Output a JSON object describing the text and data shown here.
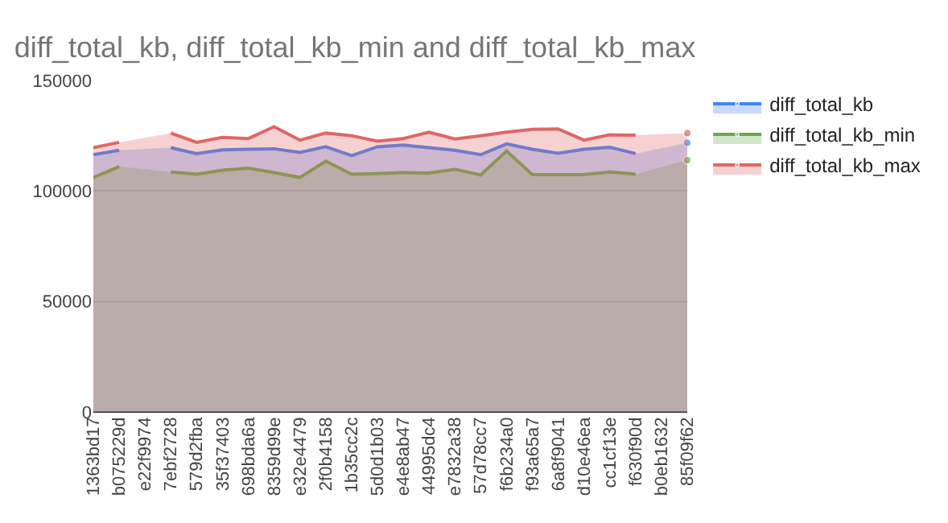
{
  "chart_data": {
    "type": "area",
    "title": "diff_total_kb, diff_total_kb_min and diff_total_kb_max",
    "categories": [
      "1363bd17",
      "b075229d",
      "e22f9974",
      "7ebf2728",
      "579d2fba",
      "35f37403",
      "698bda6a",
      "8359d99e",
      "e32e4479",
      "2f0b4158",
      "1b35cc2c",
      "5d0d1b03",
      "e4e8ab47",
      "44995dc4",
      "e7832a38",
      "57d78cc7",
      "f6b234a0",
      "f93a65a7",
      "6a8f9041",
      "d10e46ea",
      "cc1cf13e",
      "f630f90d",
      "b0eb1632",
      "85f09f62"
    ],
    "series": [
      {
        "name": "diff_total_kb",
        "color": "#4285f4",
        "values": [
          116400,
          118400,
          null,
          119600,
          116900,
          118600,
          118900,
          119100,
          117400,
          120000,
          116000,
          120000,
          120800,
          119600,
          118400,
          116400,
          121300,
          118900,
          117100,
          118900,
          119800,
          116900,
          null,
          121800
        ]
      },
      {
        "name": "diff_total_kb_min",
        "color": "#6aa84f",
        "values": [
          106100,
          111000,
          null,
          108600,
          107600,
          109400,
          110300,
          108300,
          106100,
          113500,
          107600,
          107900,
          108300,
          108100,
          109800,
          107200,
          118100,
          107400,
          107400,
          107400,
          108600,
          107600,
          null,
          114000
        ]
      },
      {
        "name": "diff_total_kb_max",
        "color": "#e06666",
        "values": [
          119600,
          122000,
          null,
          126200,
          122000,
          124200,
          123700,
          129100,
          123000,
          126200,
          125000,
          122500,
          123700,
          126600,
          123500,
          125000,
          126600,
          127900,
          128100,
          123000,
          125400,
          125200,
          null,
          126200
        ]
      }
    ],
    "ylim": [
      0,
      150000
    ],
    "yticks": [
      0,
      50000,
      100000,
      150000
    ],
    "grid": "y",
    "legend": "right"
  }
}
